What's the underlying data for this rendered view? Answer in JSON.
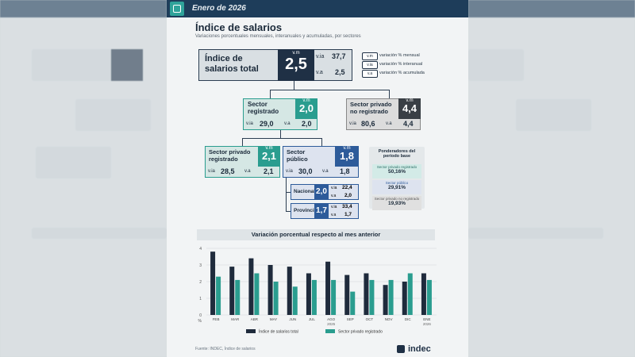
{
  "header": {
    "date": "Enero de 2026",
    "logo_icon": "indec-square-icon"
  },
  "page": {
    "title": "Índice de salarios",
    "subtitle": "Variaciones porcentuales mensuales, interanuales y acumuladas, por sectores"
  },
  "total": {
    "label": "Índice de salarios total",
    "vm_label": "v.m",
    "vm": "2,5",
    "via_label": "v.ia",
    "via": "37,7",
    "va_label": "v.a",
    "va": "2,5"
  },
  "legend": [
    {
      "tag": "v.m",
      "text": "variación % mensual"
    },
    {
      "tag": "v.ia",
      "text": "variación % interanual"
    },
    {
      "tag": "v.a",
      "text": "variación % acumulada"
    }
  ],
  "sector_registrado": {
    "label": "Sector registrado",
    "vm_label": "v.m",
    "vm": "2,0",
    "via_label": "v.ia",
    "via": "29,0",
    "va_label": "v.a",
    "va": "2,0"
  },
  "sector_no_registrado": {
    "label": "Sector privado no registrado",
    "vm_label": "v.m",
    "vm": "4,4",
    "via_label": "v.ia",
    "via": "80,6",
    "va_label": "v.a",
    "va": "4,4"
  },
  "sector_privado_registrado": {
    "label": "Sector privado registrado",
    "vm_label": "v.m",
    "vm": "2,1",
    "via_label": "v.ia",
    "via": "28,5",
    "va_label": "v.a",
    "va": "2,1"
  },
  "sector_publico": {
    "label": "Sector público",
    "vm_label": "v.m",
    "vm": "1,8",
    "via_label": "v.ia",
    "via": "30,0",
    "va_label": "v.a",
    "va": "1,8"
  },
  "nacional": {
    "label": "Nacional",
    "vm": "2,0",
    "via_label": "v.ia",
    "via": "22,4",
    "va_label": "v.a",
    "va": "2,0"
  },
  "provincial": {
    "label": "Provincial",
    "vm": "1,7",
    "via_label": "v.ia",
    "via": "33,4",
    "va_label": "v.a",
    "va": "1,7"
  },
  "ponderadores": {
    "title": "Ponderadores del período base",
    "items": [
      {
        "label": "Sector privado registrado",
        "value": "50,16%"
      },
      {
        "label": "Sector público",
        "value": "29,91%"
      },
      {
        "label": "Sector privado no registrado",
        "value": "19,93%"
      }
    ]
  },
  "chart_data": {
    "type": "bar",
    "title": "Variación porcentual respecto al mes anterior",
    "ylabel": "%",
    "ylim": [
      0,
      4
    ],
    "yticks": [
      "0",
      "1",
      "2",
      "3",
      "4"
    ],
    "categories": [
      "FEB",
      "MAR",
      "ABR",
      "MAY",
      "JUN",
      "JUL",
      "AGO",
      "SEP",
      "OCT",
      "NOV",
      "DIC",
      "ENE"
    ],
    "year_labels": [
      {
        "label": "2025",
        "at": "AGO"
      },
      {
        "label": "2026",
        "at": "ENE"
      }
    ],
    "series": [
      {
        "name": "Índice de salarios total",
        "color": "#1f2b3c",
        "values": [
          3.8,
          2.9,
          3.4,
          3.0,
          2.9,
          2.5,
          3.2,
          2.4,
          2.5,
          1.8,
          2.0,
          2.5
        ]
      },
      {
        "name": "Sector privado registrado",
        "color": "#2a9d8f",
        "values": [
          2.3,
          2.1,
          2.5,
          2.0,
          1.7,
          2.1,
          2.1,
          1.4,
          2.1,
          2.1,
          2.5,
          2.1
        ]
      }
    ],
    "grid": true,
    "legend_position": "bottom"
  },
  "footer": {
    "source": "Fuente: INDEC, Índice de salarios",
    "brand": "indec"
  }
}
